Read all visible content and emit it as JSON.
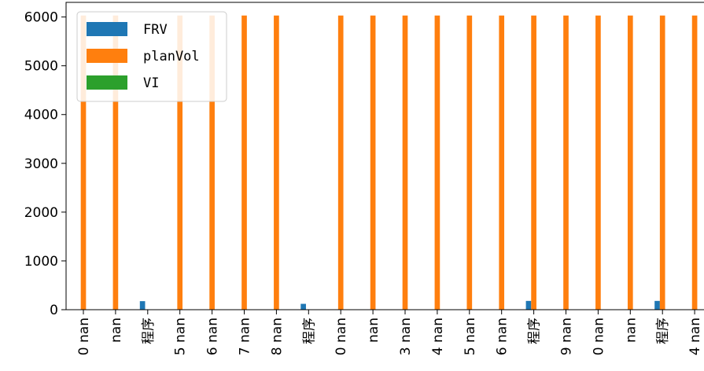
{
  "chart_data": {
    "type": "bar",
    "categories": [
      "nan",
      "nan",
      "程序",
      "nan",
      "nan",
      "nan",
      "nan",
      "程序",
      "nan",
      "nan",
      "nan",
      "nan",
      "nan",
      "nan",
      "程序",
      "nan",
      "nan",
      "nan",
      "程序",
      "nan"
    ],
    "category_label_lower_fragments": [
      "0",
      "",
      "",
      "5",
      "6",
      "7",
      "8",
      "",
      "0",
      "",
      "3",
      "4",
      "5",
      "6",
      "",
      "9",
      "0",
      "",
      "",
      "4"
    ],
    "series": [
      {
        "name": "FRV",
        "color": "#1f77b4",
        "values": [
          0,
          0,
          175,
          0,
          0,
          0,
          0,
          120,
          0,
          0,
          0,
          0,
          0,
          0,
          180,
          0,
          0,
          0,
          180,
          0
        ]
      },
      {
        "name": "planVol",
        "color": "#ff7f0e",
        "values": [
          6030,
          6030,
          0,
          6030,
          6030,
          6030,
          6030,
          0,
          6030,
          6030,
          6030,
          6030,
          6030,
          6030,
          6030,
          6030,
          6030,
          6030,
          6030,
          6030
        ]
      },
      {
        "name": "VI",
        "color": "#2ca02c",
        "values": [
          0,
          0,
          0,
          0,
          0,
          0,
          0,
          0,
          0,
          0,
          0,
          0,
          0,
          0,
          0,
          0,
          0,
          0,
          0,
          0
        ]
      }
    ],
    "yticks": [
      0,
      1000,
      2000,
      3000,
      4000,
      5000,
      6000
    ],
    "ylim": [
      0,
      6300
    ],
    "legend_position": "top-left",
    "grid": false
  }
}
